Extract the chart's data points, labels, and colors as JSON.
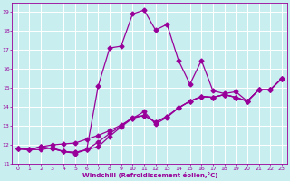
{
  "xlabel": "Windchill (Refroidissement éolien,°C)",
  "xlim": [
    -0.5,
    23.5
  ],
  "ylim": [
    11,
    19.5
  ],
  "xticks": [
    0,
    1,
    2,
    3,
    4,
    5,
    6,
    7,
    8,
    9,
    10,
    11,
    12,
    13,
    14,
    15,
    16,
    17,
    18,
    19,
    20,
    21,
    22,
    23
  ],
  "yticks": [
    11,
    12,
    13,
    14,
    15,
    16,
    17,
    18,
    19
  ],
  "bg_color": "#c8eef0",
  "grid_color": "#ffffff",
  "line_color": "#990099",
  "curve_main": [
    [
      0,
      11.8
    ],
    [
      1,
      11.75
    ],
    [
      2,
      11.9
    ],
    [
      3,
      11.8
    ],
    [
      4,
      11.65
    ],
    [
      5,
      11.6
    ],
    [
      6,
      11.75
    ],
    [
      7,
      15.1
    ],
    [
      8,
      17.1
    ],
    [
      9,
      17.2
    ],
    [
      10,
      18.9
    ],
    [
      11,
      19.1
    ],
    [
      12,
      18.05
    ],
    [
      13,
      18.35
    ],
    [
      14,
      16.45
    ],
    [
      15,
      15.2
    ],
    [
      16,
      16.45
    ],
    [
      17,
      14.85
    ],
    [
      18,
      14.7
    ],
    [
      19,
      14.8
    ],
    [
      20,
      14.3
    ],
    [
      21,
      14.9
    ],
    [
      22,
      14.9
    ],
    [
      23,
      15.5
    ]
  ],
  "curve_diag1": [
    [
      0,
      11.8
    ],
    [
      1,
      11.75
    ],
    [
      2,
      11.9
    ],
    [
      3,
      12.0
    ],
    [
      4,
      12.05
    ],
    [
      5,
      12.1
    ],
    [
      6,
      12.3
    ],
    [
      7,
      12.5
    ],
    [
      8,
      12.75
    ],
    [
      9,
      13.05
    ],
    [
      10,
      13.4
    ],
    [
      11,
      13.55
    ],
    [
      12,
      13.2
    ],
    [
      13,
      13.5
    ],
    [
      14,
      13.95
    ],
    [
      15,
      14.3
    ],
    [
      16,
      14.55
    ],
    [
      17,
      14.5
    ],
    [
      18,
      14.65
    ],
    [
      19,
      14.5
    ],
    [
      20,
      14.3
    ],
    [
      21,
      14.9
    ],
    [
      22,
      14.9
    ],
    [
      23,
      15.5
    ]
  ],
  "curve_diag2": [
    [
      0,
      11.8
    ],
    [
      1,
      11.75
    ],
    [
      2,
      11.9
    ],
    [
      3,
      11.8
    ],
    [
      4,
      11.65
    ],
    [
      5,
      11.6
    ],
    [
      6,
      11.75
    ],
    [
      7,
      12.15
    ],
    [
      8,
      12.6
    ],
    [
      9,
      13.0
    ],
    [
      10,
      13.45
    ],
    [
      11,
      13.55
    ],
    [
      12,
      13.2
    ],
    [
      13,
      13.5
    ],
    [
      14,
      13.95
    ],
    [
      15,
      14.3
    ],
    [
      16,
      14.55
    ],
    [
      17,
      14.5
    ],
    [
      18,
      14.65
    ],
    [
      19,
      14.5
    ],
    [
      20,
      14.3
    ],
    [
      21,
      14.9
    ],
    [
      22,
      14.9
    ],
    [
      23,
      15.5
    ]
  ],
  "curve_diag3": [
    [
      0,
      11.8
    ],
    [
      1,
      11.75
    ],
    [
      2,
      11.75
    ],
    [
      3,
      11.85
    ],
    [
      4,
      11.65
    ],
    [
      5,
      11.55
    ],
    [
      6,
      11.75
    ],
    [
      7,
      11.9
    ],
    [
      8,
      12.45
    ],
    [
      9,
      12.95
    ],
    [
      10,
      13.4
    ],
    [
      11,
      13.75
    ],
    [
      12,
      13.1
    ],
    [
      13,
      13.45
    ],
    [
      14,
      13.95
    ],
    [
      15,
      14.3
    ],
    [
      16,
      14.55
    ],
    [
      17,
      14.5
    ],
    [
      18,
      14.65
    ],
    [
      19,
      14.5
    ],
    [
      20,
      14.3
    ],
    [
      21,
      14.9
    ],
    [
      22,
      14.9
    ],
    [
      23,
      15.5
    ]
  ],
  "markersize": 2.5,
  "linewidth": 0.9
}
